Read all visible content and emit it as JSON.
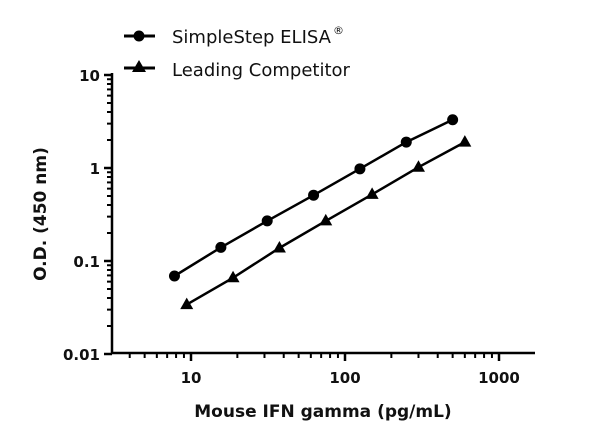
{
  "chart_data": {
    "type": "line",
    "title": "",
    "xlabel": "Mouse IFN gamma (pg/mL)",
    "ylabel": "O.D. (450 nm)",
    "xscale": "log",
    "yscale": "log",
    "xlim": [
      3,
      1700
    ],
    "ylim": [
      0.01,
      10
    ],
    "x_ticks": [
      10,
      100,
      1000
    ],
    "x_tick_labels": [
      "10",
      "100",
      "1000"
    ],
    "y_ticks": [
      0.01,
      0.1,
      1,
      10
    ],
    "y_tick_labels": [
      "0.01",
      "0.1",
      "1",
      "10"
    ],
    "grid": false,
    "legend_position": "top-left",
    "series": [
      {
        "name": "SimpleStep ELISA®",
        "label_main": "SimpleStep ELISA",
        "label_sup": "®",
        "marker": "circle",
        "color": "#000000",
        "x": [
          7.81,
          15.63,
          31.25,
          62.5,
          125,
          250,
          500
        ],
        "y": [
          0.069,
          0.14,
          0.27,
          0.51,
          0.98,
          1.9,
          3.3
        ]
      },
      {
        "name": "Leading Competitor",
        "label_main": "Leading Competitor",
        "label_sup": "",
        "marker": "triangle",
        "color": "#000000",
        "x": [
          9.38,
          18.75,
          37.5,
          75,
          150,
          300,
          600
        ],
        "y": [
          0.034,
          0.066,
          0.138,
          0.27,
          0.52,
          1.02,
          1.9
        ]
      }
    ]
  },
  "legend": {
    "items": [
      {
        "label": "SimpleStep ELISA",
        "sup": "®",
        "marker": "circle-marker-icon"
      },
      {
        "label": "Leading Competitor",
        "sup": "",
        "marker": "triangle-marker-icon"
      }
    ]
  },
  "axes": {
    "x_title": "Mouse IFN gamma (pg/mL)",
    "y_title": "O.D. (450 nm)"
  }
}
